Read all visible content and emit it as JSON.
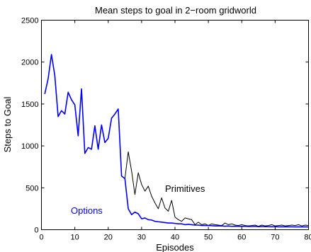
{
  "chart_data": {
    "type": "line",
    "title": "Mean steps to goal in 2−room gridworld",
    "xlabel": "Episodes",
    "ylabel": "Steps to Goal",
    "xlim": [
      0,
      80
    ],
    "ylim": [
      0,
      2500
    ],
    "xticks": [
      "0",
      "10",
      "20",
      "30",
      "40",
      "50",
      "60",
      "70",
      "80"
    ],
    "yticks": [
      "0",
      "500",
      "1000",
      "1500",
      "2000",
      "2500"
    ],
    "grid": false,
    "legend": "none",
    "annotations": [
      {
        "text": "Primitives",
        "series": "Primitives"
      },
      {
        "text": "Options",
        "series": "Options"
      }
    ],
    "series": [
      {
        "name": "Primitives",
        "color": "#000000",
        "x": [
          1,
          2,
          3,
          4,
          5,
          6,
          7,
          8,
          9,
          10,
          11,
          12,
          13,
          14,
          15,
          16,
          17,
          18,
          19,
          20,
          21,
          22,
          23,
          24,
          25,
          26,
          27,
          28,
          29,
          30,
          31,
          32,
          33,
          34,
          35,
          36,
          37,
          38,
          39,
          40,
          41,
          42,
          43,
          44,
          45,
          46,
          47,
          48,
          49,
          50,
          51,
          52,
          53,
          54,
          55,
          56,
          57,
          58,
          59,
          60,
          61,
          62,
          63,
          64,
          65,
          66,
          67,
          68,
          69,
          70,
          71,
          72,
          73,
          74,
          75,
          76,
          77,
          78,
          79,
          80
        ],
        "values": [
          1620,
          1800,
          2090,
          1840,
          1350,
          1420,
          1380,
          1640,
          1550,
          1490,
          1120,
          1680,
          910,
          980,
          960,
          1240,
          960,
          1250,
          1040,
          1090,
          1330,
          1380,
          1440,
          640,
          610,
          930,
          700,
          420,
          680,
          540,
          460,
          520,
          400,
          320,
          250,
          380,
          260,
          220,
          350,
          150,
          120,
          100,
          140,
          130,
          120,
          60,
          90,
          60,
          70,
          50,
          70,
          60,
          55,
          50,
          80,
          60,
          70,
          55,
          50,
          60,
          50,
          45,
          50,
          55,
          40,
          55,
          45,
          50,
          60,
          45,
          50,
          55,
          45,
          50,
          55,
          50,
          60,
          45,
          55,
          50
        ]
      },
      {
        "name": "Options",
        "color": "#0000ff",
        "x": [
          1,
          2,
          3,
          4,
          5,
          6,
          7,
          8,
          9,
          10,
          11,
          12,
          13,
          14,
          15,
          16,
          17,
          18,
          19,
          20,
          21,
          22,
          23,
          24,
          25,
          26,
          27,
          28,
          29,
          30,
          31,
          32,
          33,
          34,
          35,
          36,
          37,
          38,
          39,
          40,
          41,
          42,
          43,
          44,
          45,
          46,
          47,
          48,
          49,
          50,
          51,
          52,
          53,
          54,
          55,
          56,
          57,
          58,
          59,
          60,
          61,
          62,
          63,
          64,
          65,
          66,
          67,
          68,
          69,
          70,
          71,
          72,
          73,
          74,
          75,
          76,
          77,
          78,
          79,
          80
        ],
        "values": [
          1620,
          1800,
          2090,
          1840,
          1350,
          1420,
          1380,
          1640,
          1550,
          1490,
          1120,
          1680,
          910,
          980,
          960,
          1240,
          960,
          1250,
          1040,
          1090,
          1330,
          1380,
          1440,
          640,
          610,
          250,
          180,
          210,
          190,
          130,
          140,
          120,
          115,
          100,
          95,
          90,
          85,
          80,
          80,
          75,
          70,
          70,
          60,
          65,
          60,
          55,
          55,
          50,
          50,
          50,
          48,
          45,
          45,
          45,
          42,
          44,
          40,
          42,
          40,
          40,
          40,
          38,
          38,
          40,
          36,
          38,
          36,
          36,
          35,
          36,
          34,
          35,
          34,
          35,
          34,
          33,
          34,
          33,
          34,
          33
        ]
      }
    ]
  }
}
